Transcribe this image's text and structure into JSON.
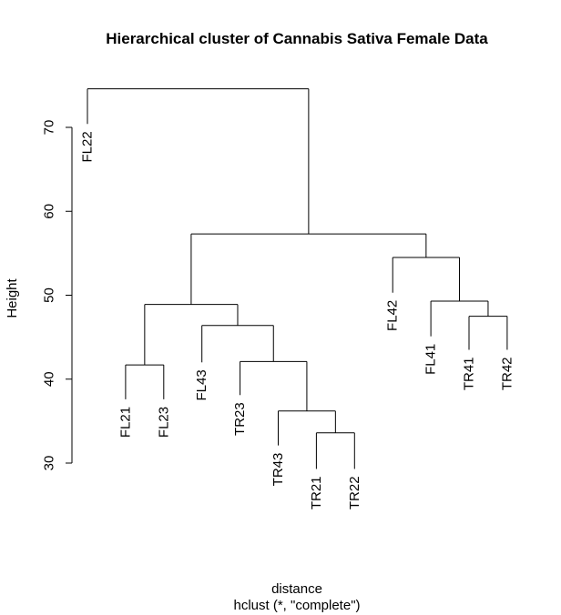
{
  "chart_data": {
    "type": "dendrogram",
    "title": "Hierarchical cluster of Cannabis Sativa Female Data",
    "xlabel": "distance",
    "sublabel": "hclust (*, \"complete\")",
    "ylabel": "Height",
    "ylim": [
      30,
      75
    ],
    "y_ticks": [
      30,
      40,
      50,
      60,
      70
    ],
    "leaves": [
      {
        "id": "FL22",
        "label": "FL22",
        "height": 70.4
      },
      {
        "id": "FL21",
        "label": "FL21",
        "height": 37.6
      },
      {
        "id": "FL23",
        "label": "FL23",
        "height": 37.6
      },
      {
        "id": "FL43",
        "label": "FL43",
        "height": 42.0
      },
      {
        "id": "TR23",
        "label": "TR23",
        "height": 38.1
      },
      {
        "id": "TR43",
        "label": "TR43",
        "height": 32.1
      },
      {
        "id": "TR21",
        "label": "TR21",
        "height": 29.3
      },
      {
        "id": "TR22",
        "label": "TR22",
        "height": 29.3
      },
      {
        "id": "FL42",
        "label": "FL42",
        "height": 50.3
      },
      {
        "id": "FL41",
        "label": "FL41",
        "height": 45.1
      },
      {
        "id": "TR41",
        "label": "TR41",
        "height": 43.5
      },
      {
        "id": "TR42",
        "label": "TR42",
        "height": 43.5
      }
    ],
    "merges": [
      {
        "left": "TR21",
        "right": "TR22",
        "height": 33.6
      },
      {
        "left": "TR43",
        "right": {
          "left": "TR21",
          "right": "TR22"
        },
        "height": 36.2
      },
      {
        "left": "TR23",
        "right": "TR43|TR21|TR22",
        "height": 42.1
      },
      {
        "left": "FL43",
        "right": "TR23|TR43|TR21|TR22",
        "height": 46.4
      },
      {
        "left": "FL21",
        "right": "FL23",
        "height": 41.7
      },
      {
        "left": "FL21|FL23",
        "right": "FL43|TR23|TR43|TR21|TR22",
        "height": 48.9
      },
      {
        "left": "TR41",
        "right": "TR42",
        "height": 47.5
      },
      {
        "left": "FL41",
        "right": "TR41|TR42",
        "height": 49.3
      },
      {
        "left": "FL42",
        "right": "FL41|TR41|TR42",
        "height": 54.5
      },
      {
        "left": "FL21..TR22",
        "right": "FL42..TR42",
        "height": 57.3
      },
      {
        "left": "FL22",
        "right": "rest",
        "height": 74.6
      }
    ],
    "tree": {
      "height": 74.6,
      "children": [
        {
          "leaf": "FL22"
        },
        {
          "height": 57.3,
          "children": [
            {
              "height": 48.9,
              "children": [
                {
                  "height": 41.7,
                  "children": [
                    {
                      "leaf": "FL21"
                    },
                    {
                      "leaf": "FL23"
                    }
                  ]
                },
                {
                  "height": 46.4,
                  "children": [
                    {
                      "leaf": "FL43"
                    },
                    {
                      "height": 42.1,
                      "children": [
                        {
                          "leaf": "TR23"
                        },
                        {
                          "height": 36.2,
                          "children": [
                            {
                              "leaf": "TR43"
                            },
                            {
                              "height": 33.6,
                              "children": [
                                {
                                  "leaf": "TR21"
                                },
                                {
                                  "leaf": "TR22"
                                }
                              ]
                            }
                          ]
                        }
                      ]
                    }
                  ]
                }
              ]
            },
            {
              "height": 54.5,
              "children": [
                {
                  "leaf": "FL42"
                },
                {
                  "height": 49.3,
                  "children": [
                    {
                      "leaf": "FL41"
                    },
                    {
                      "height": 47.5,
                      "children": [
                        {
                          "leaf": "TR41"
                        },
                        {
                          "leaf": "TR42"
                        }
                      ]
                    }
                  ]
                }
              ]
            }
          ]
        }
      ]
    }
  }
}
